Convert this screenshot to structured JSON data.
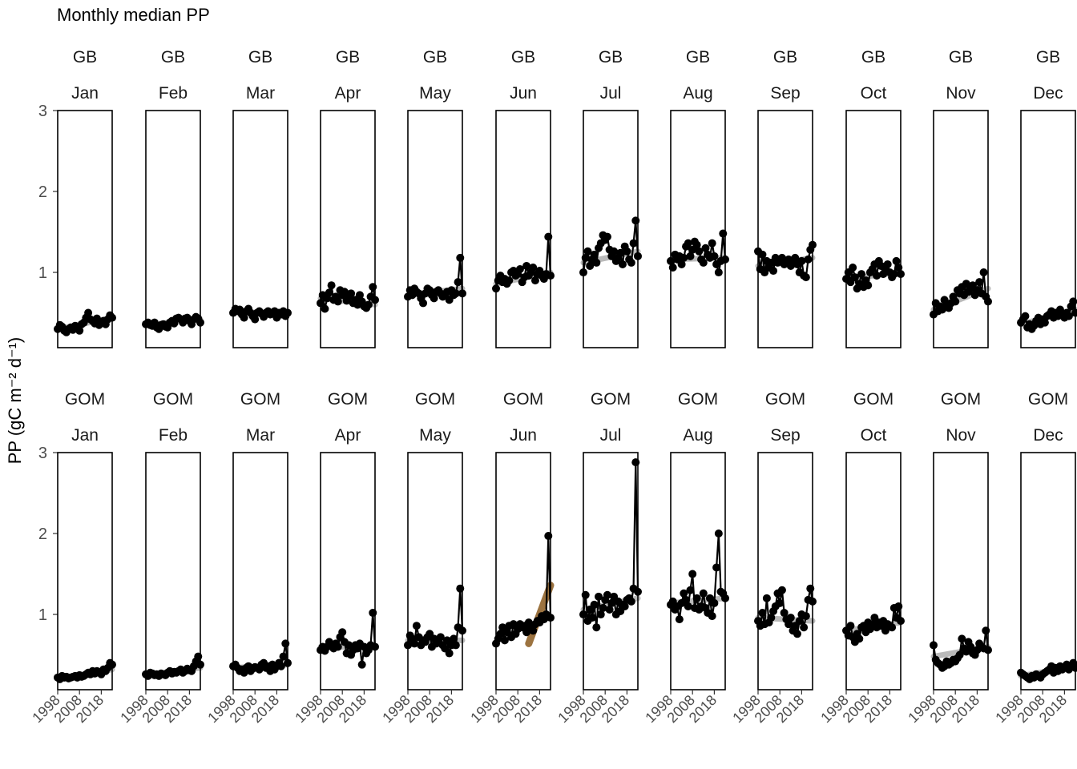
{
  "chart_data": {
    "type": "line",
    "title": "Monthly median PP",
    "ylabel": "PP (gC m⁻² d⁻¹)",
    "xlabel": "",
    "ylim": [
      0.07,
      3.0
    ],
    "yticks": [
      1,
      2,
      3
    ],
    "xlim": [
      1998,
      2023
    ],
    "xticks": [
      1998,
      2008,
      2018
    ],
    "grid": false,
    "legend": "none",
    "line_color": "#000000",
    "trend_color": "#8c8c8c",
    "highlight_trend_color": "#8b5a1e",
    "regions": [
      "GB",
      "GOM"
    ],
    "months": [
      "Jan",
      "Feb",
      "Mar",
      "Apr",
      "May",
      "Jun",
      "Jul",
      "Aug",
      "Sep",
      "Oct",
      "Nov",
      "Dec"
    ],
    "years": [
      1998,
      1999,
      2000,
      2001,
      2002,
      2003,
      2004,
      2005,
      2006,
      2007,
      2008,
      2009,
      2010,
      2011,
      2012,
      2013,
      2014,
      2015,
      2016,
      2017,
      2018,
      2019,
      2020,
      2021,
      2022,
      2023
    ],
    "series": [
      {
        "region": "GB",
        "month": "Jan",
        "values": [
          0.3,
          0.35,
          0.33,
          0.28,
          0.26,
          0.3,
          0.32,
          0.29,
          0.34,
          0.31,
          0.28,
          0.36,
          0.38,
          0.44,
          0.5,
          0.42,
          0.4,
          0.37,
          0.43,
          0.35,
          0.38,
          0.4,
          0.36,
          0.42,
          0.47,
          0.44
        ],
        "trend": [
          0.3,
          0.44
        ]
      },
      {
        "region": "GB",
        "month": "Feb",
        "values": [
          0.36,
          0.38,
          0.35,
          0.34,
          0.38,
          0.32,
          0.3,
          0.35,
          0.36,
          0.33,
          0.32,
          0.38,
          0.4,
          0.37,
          0.43,
          0.44,
          0.42,
          0.38,
          0.43,
          0.44,
          0.4,
          0.36,
          0.42,
          0.45,
          0.43,
          0.38
        ],
        "trend": [
          0.35,
          0.42
        ]
      },
      {
        "region": "GB",
        "month": "Mar",
        "values": [
          0.5,
          0.55,
          0.52,
          0.54,
          0.48,
          0.44,
          0.52,
          0.55,
          0.5,
          0.46,
          0.42,
          0.5,
          0.52,
          0.49,
          0.45,
          0.5,
          0.52,
          0.48,
          0.5,
          0.52,
          0.44,
          0.5,
          0.48,
          0.52,
          0.46,
          0.5
        ],
        "trend": [
          0.52,
          0.48
        ]
      },
      {
        "region": "GB",
        "month": "Apr",
        "values": [
          0.62,
          0.72,
          0.55,
          0.68,
          0.75,
          0.84,
          0.66,
          0.7,
          0.64,
          0.78,
          0.72,
          0.76,
          0.65,
          0.7,
          0.74,
          0.62,
          0.66,
          0.6,
          0.72,
          0.64,
          0.58,
          0.56,
          0.6,
          0.7,
          0.82,
          0.66
        ],
        "trend": [
          0.68,
          0.6
        ]
      },
      {
        "region": "GB",
        "month": "May",
        "values": [
          0.7,
          0.78,
          0.72,
          0.8,
          0.76,
          0.74,
          0.68,
          0.62,
          0.74,
          0.8,
          0.78,
          0.72,
          0.68,
          0.76,
          0.78,
          0.74,
          0.7,
          0.72,
          0.76,
          0.66,
          0.78,
          0.72,
          0.74,
          0.88,
          1.18,
          0.74
        ],
        "trend": [
          0.72,
          0.8
        ]
      },
      {
        "region": "GB",
        "month": "Jun",
        "values": [
          0.8,
          0.9,
          0.96,
          0.88,
          0.92,
          0.86,
          0.9,
          1.0,
          1.02,
          0.96,
          0.98,
          1.04,
          0.88,
          0.94,
          1.08,
          0.96,
          1.0,
          1.06,
          0.9,
          0.98,
          1.02,
          0.96,
          0.92,
          0.98,
          1.44,
          0.96
        ],
        "trend": [
          0.86,
          1.0
        ]
      },
      {
        "region": "GB",
        "month": "Jul",
        "values": [
          1.0,
          1.18,
          1.26,
          1.08,
          1.16,
          1.22,
          1.12,
          1.3,
          1.36,
          1.46,
          1.4,
          1.44,
          1.28,
          1.2,
          1.26,
          1.14,
          1.18,
          1.24,
          1.1,
          1.32,
          1.26,
          1.16,
          1.12,
          1.36,
          1.64,
          1.2
        ],
        "trend": [
          1.12,
          1.26
        ]
      },
      {
        "region": "GB",
        "month": "Aug",
        "values": [
          1.14,
          1.06,
          1.22,
          1.16,
          1.2,
          1.1,
          1.18,
          1.32,
          1.36,
          1.2,
          1.28,
          1.38,
          1.34,
          1.26,
          1.16,
          1.12,
          1.3,
          1.22,
          1.18,
          1.36,
          1.2,
          1.1,
          1.0,
          1.14,
          1.48,
          1.16
        ],
        "trend": [
          1.16,
          1.18
        ]
      },
      {
        "region": "GB",
        "month": "Sep",
        "values": [
          1.26,
          1.04,
          1.22,
          1.0,
          1.14,
          1.06,
          1.12,
          1.02,
          1.18,
          1.12,
          1.16,
          1.18,
          1.1,
          1.14,
          1.16,
          1.08,
          1.12,
          1.18,
          1.1,
          1.0,
          1.14,
          0.96,
          0.94,
          1.16,
          1.28,
          1.34
        ],
        "trend": [
          1.08,
          1.18
        ]
      },
      {
        "region": "GB",
        "month": "Oct",
        "values": [
          0.92,
          1.0,
          0.88,
          1.06,
          0.94,
          0.8,
          0.86,
          0.98,
          0.82,
          0.9,
          0.84,
          1.0,
          1.04,
          1.1,
          0.96,
          1.14,
          1.08,
          0.98,
          1.02,
          1.1,
          1.0,
          0.94,
          0.98,
          1.14,
          1.06,
          0.98
        ],
        "trend": [
          0.92,
          1.0
        ]
      },
      {
        "region": "GB",
        "month": "Nov",
        "values": [
          0.48,
          0.62,
          0.52,
          0.58,
          0.54,
          0.66,
          0.6,
          0.56,
          0.62,
          0.7,
          0.64,
          0.78,
          0.74,
          0.82,
          0.72,
          0.86,
          0.76,
          0.8,
          0.84,
          0.72,
          0.78,
          0.88,
          0.74,
          1.0,
          0.7,
          0.64
        ],
        "trend": [
          0.54,
          0.8
        ]
      },
      {
        "region": "GB",
        "month": "Dec",
        "values": [
          0.38,
          0.42,
          0.46,
          0.32,
          0.36,
          0.3,
          0.34,
          0.4,
          0.44,
          0.36,
          0.42,
          0.38,
          0.46,
          0.48,
          0.52,
          0.44,
          0.5,
          0.46,
          0.54,
          0.48,
          0.44,
          0.5,
          0.46,
          0.58,
          0.64,
          0.5
        ],
        "trend": [
          0.36,
          0.54
        ]
      },
      {
        "region": "GOM",
        "month": "Jan",
        "values": [
          0.22,
          0.2,
          0.24,
          0.22,
          0.23,
          0.21,
          0.22,
          0.23,
          0.24,
          0.22,
          0.25,
          0.23,
          0.24,
          0.26,
          0.28,
          0.26,
          0.3,
          0.27,
          0.3,
          0.28,
          0.26,
          0.32,
          0.3,
          0.34,
          0.4,
          0.38
        ],
        "trend": [
          0.21,
          0.32
        ]
      },
      {
        "region": "GOM",
        "month": "Feb",
        "values": [
          0.26,
          0.24,
          0.28,
          0.27,
          0.25,
          0.26,
          0.24,
          0.27,
          0.26,
          0.25,
          0.28,
          0.3,
          0.27,
          0.29,
          0.28,
          0.3,
          0.32,
          0.28,
          0.3,
          0.33,
          0.31,
          0.3,
          0.36,
          0.42,
          0.48,
          0.38
        ],
        "trend": [
          0.25,
          0.34
        ]
      },
      {
        "region": "GOM",
        "month": "Mar",
        "values": [
          0.36,
          0.38,
          0.34,
          0.3,
          0.32,
          0.28,
          0.34,
          0.36,
          0.3,
          0.33,
          0.35,
          0.34,
          0.32,
          0.38,
          0.4,
          0.34,
          0.36,
          0.3,
          0.38,
          0.32,
          0.36,
          0.4,
          0.36,
          0.48,
          0.64,
          0.4
        ],
        "trend": [
          0.34,
          0.38
        ]
      },
      {
        "region": "GOM",
        "month": "Apr",
        "values": [
          0.56,
          0.6,
          0.55,
          0.6,
          0.66,
          0.62,
          0.58,
          0.64,
          0.6,
          0.72,
          0.78,
          0.66,
          0.52,
          0.62,
          0.5,
          0.56,
          0.62,
          0.58,
          0.64,
          0.38,
          0.6,
          0.52,
          0.56,
          0.62,
          1.02,
          0.6
        ],
        "trend": [
          0.6,
          0.6
        ]
      },
      {
        "region": "GOM",
        "month": "May",
        "values": [
          0.62,
          0.74,
          0.7,
          0.64,
          0.86,
          0.72,
          0.62,
          0.68,
          0.66,
          0.72,
          0.76,
          0.6,
          0.7,
          0.64,
          0.66,
          0.72,
          0.62,
          0.58,
          0.68,
          0.52,
          0.62,
          0.7,
          0.62,
          0.84,
          1.32,
          0.8
        ],
        "trend": [
          0.68,
          0.68
        ]
      },
      {
        "region": "GOM",
        "month": "Jun",
        "values": [
          0.64,
          0.7,
          0.76,
          0.84,
          0.68,
          0.78,
          0.86,
          0.72,
          0.88,
          0.76,
          0.82,
          0.88,
          0.84,
          0.86,
          0.78,
          0.9,
          0.84,
          0.8,
          0.88,
          0.92,
          0.9,
          0.98,
          0.94,
          1.0,
          1.97,
          0.96
        ],
        "trend": [
          0.64,
          1.36
        ],
        "highlight": true,
        "trend_start": 2013
      },
      {
        "region": "GOM",
        "month": "Jul",
        "values": [
          1.0,
          1.24,
          0.92,
          1.06,
          0.96,
          1.12,
          0.84,
          1.22,
          1.0,
          1.08,
          1.18,
          1.24,
          1.06,
          1.14,
          1.22,
          1.0,
          1.16,
          1.04,
          1.12,
          1.1,
          1.18,
          1.2,
          1.16,
          1.32,
          2.88,
          1.28
        ],
        "trend": [
          1.06,
          1.2
        ]
      },
      {
        "region": "GOM",
        "month": "Aug",
        "values": [
          1.12,
          1.16,
          1.06,
          1.1,
          0.94,
          1.14,
          1.26,
          1.18,
          1.1,
          1.3,
          1.5,
          1.08,
          1.2,
          1.06,
          1.1,
          1.26,
          1.08,
          1.02,
          1.2,
          0.98,
          1.14,
          1.58,
          2.0,
          1.28,
          1.26,
          1.2
        ],
        "trend": [
          1.14,
          1.2
        ]
      },
      {
        "region": "GOM",
        "month": "Sep",
        "values": [
          0.92,
          0.86,
          1.02,
          0.88,
          1.2,
          0.9,
          0.96,
          1.04,
          1.1,
          1.26,
          1.14,
          1.3,
          1.02,
          0.94,
          0.88,
          0.96,
          0.8,
          0.86,
          0.76,
          0.92,
          1.0,
          0.84,
          0.98,
          1.18,
          1.32,
          1.16
        ],
        "trend": [
          0.96,
          0.92
        ]
      },
      {
        "region": "GOM",
        "month": "Oct",
        "values": [
          0.8,
          0.74,
          0.86,
          0.72,
          0.66,
          0.76,
          0.7,
          0.84,
          0.86,
          0.78,
          0.9,
          0.82,
          0.88,
          0.96,
          0.84,
          0.9,
          0.86,
          0.92,
          0.8,
          0.88,
          0.86,
          0.84,
          1.08,
          0.96,
          1.1,
          0.92
        ],
        "trend": [
          0.8,
          0.9
        ]
      },
      {
        "region": "GOM",
        "month": "Nov",
        "values": [
          0.62,
          0.44,
          0.4,
          0.38,
          0.34,
          0.36,
          0.42,
          0.38,
          0.4,
          0.44,
          0.42,
          0.46,
          0.5,
          0.7,
          0.58,
          0.54,
          0.66,
          0.6,
          0.52,
          0.5,
          0.56,
          0.64,
          0.6,
          0.58,
          0.8,
          0.56
        ],
        "trend": [
          0.48,
          0.6
        ]
      },
      {
        "region": "GOM",
        "month": "Dec",
        "values": [
          0.28,
          0.26,
          0.24,
          0.22,
          0.2,
          0.24,
          0.22,
          0.26,
          0.24,
          0.22,
          0.26,
          0.28,
          0.3,
          0.32,
          0.36,
          0.28,
          0.34,
          0.3,
          0.36,
          0.32,
          0.34,
          0.38,
          0.32,
          0.36,
          0.4,
          0.34
        ],
        "trend": [
          0.24,
          0.36
        ]
      }
    ]
  }
}
